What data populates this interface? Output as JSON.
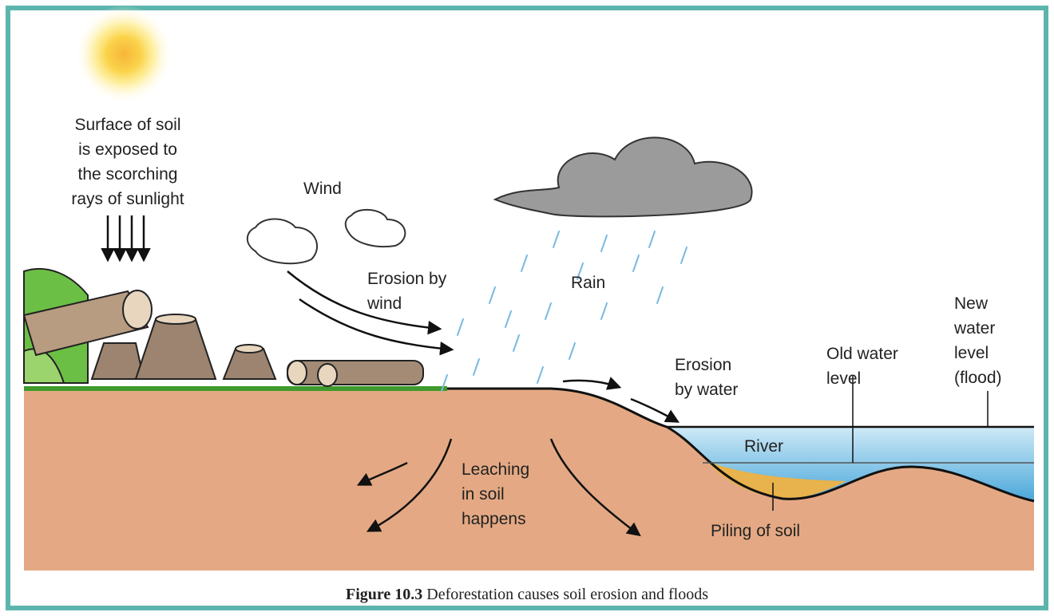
{
  "labels": {
    "sun": [
      "Surface of soil",
      "is exposed to",
      "the scorching",
      "rays of sunlight"
    ],
    "wind": "Wind",
    "erosion_wind": [
      "Erosion by",
      "wind"
    ],
    "rain": "Rain",
    "erosion_water": [
      "Erosion",
      "by water"
    ],
    "old_level": [
      "Old water",
      "level"
    ],
    "new_level": [
      "New",
      "water",
      "level",
      "(flood)"
    ],
    "river": "River",
    "leaching": [
      "Leaching",
      "in soil",
      "happens"
    ],
    "piling": "Piling of soil"
  },
  "caption": {
    "number": "Figure 10.3",
    "text": "Deforestation causes soil erosion and floods"
  }
}
